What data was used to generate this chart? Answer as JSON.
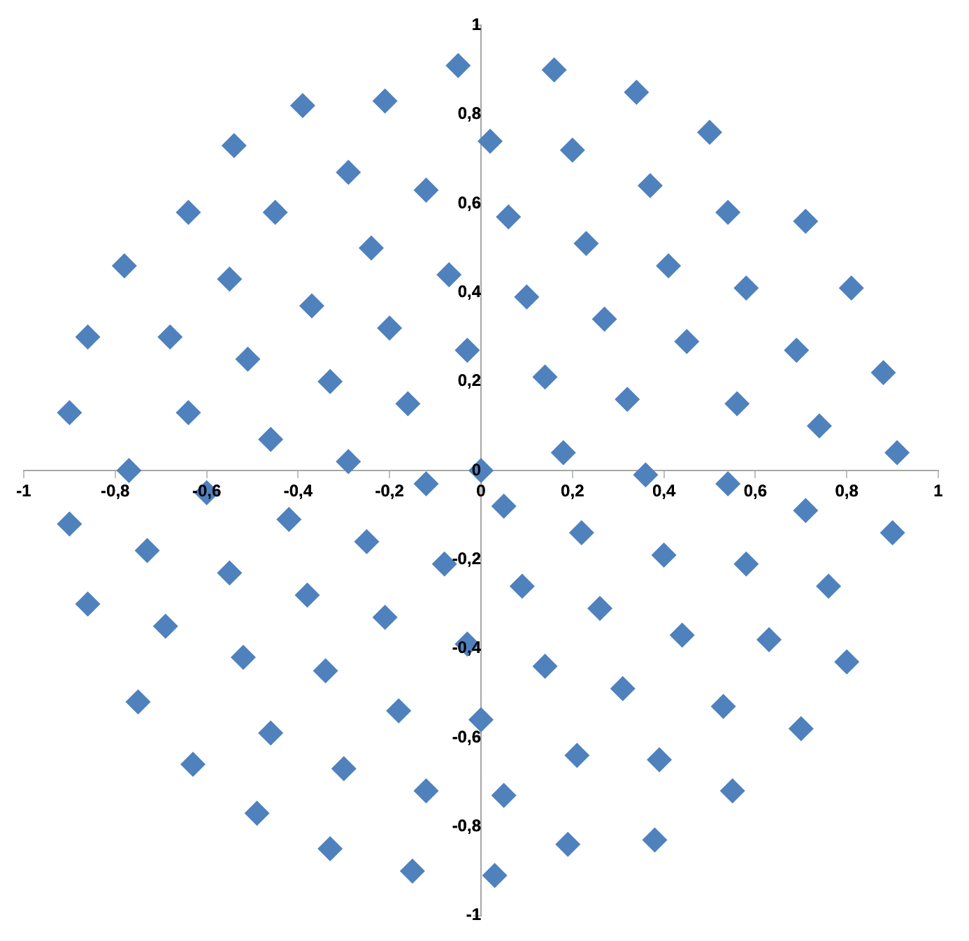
{
  "chart_data": {
    "type": "scatter",
    "marker": "diamond",
    "grid": false,
    "legend": false,
    "xlim": [
      -1,
      1
    ],
    "ylim": [
      -1,
      1
    ],
    "xticks": [
      -1,
      {
        "value": -0.8,
        "label": "-0,8"
      },
      {
        "value": -0.6,
        "label": "-0,6"
      },
      {
        "value": -0.4,
        "label": "-0,4"
      },
      {
        "value": -0.2,
        "label": "-0,2"
      },
      0,
      {
        "value": 0.2,
        "label": "0,2"
      },
      {
        "value": 0.4,
        "label": "0,4"
      },
      {
        "value": 0.6,
        "label": "0,6"
      },
      {
        "value": 0.8,
        "label": "0,8"
      },
      1
    ],
    "yticks": [
      -1,
      {
        "value": -0.8,
        "label": "-0,8"
      },
      {
        "value": -0.6,
        "label": "-0,6"
      },
      {
        "value": -0.4,
        "label": "-0,4"
      },
      {
        "value": -0.2,
        "label": "-0,2"
      },
      0,
      {
        "value": 0.2,
        "label": "0,2"
      },
      {
        "value": 0.4,
        "label": "0,4"
      },
      {
        "value": 0.6,
        "label": "0,6"
      },
      {
        "value": 0.8,
        "label": "0,8"
      },
      1
    ],
    "series": [
      {
        "color": "#4f81bd",
        "x": [
          -0.05,
          -0.39,
          -0.21,
          -0.54,
          -0.29,
          -0.12,
          -0.64,
          -0.45,
          -0.78,
          -0.24,
          -0.07,
          -0.55,
          -0.37,
          -0.86,
          -0.68,
          -0.2,
          -0.51,
          -0.03,
          -0.33,
          -0.9,
          -0.64,
          -0.16,
          -0.46,
          -0.29,
          -0.77,
          0,
          0.16,
          0.34,
          0.02,
          0.2,
          0.5,
          0.37,
          0.06,
          0.54,
          0.71,
          0.23,
          0.41,
          0.58,
          0.81,
          0.1,
          0.27,
          0.45,
          0.69,
          0.14,
          0.88,
          0.32,
          0.56,
          0.74,
          0.18,
          0.91,
          0.36,
          0.54,
          -0.6,
          -0.9,
          -0.42,
          -0.12,
          -0.73,
          -0.25,
          -0.55,
          -0.08,
          -0.86,
          -0.38,
          -0.69,
          -0.21,
          -0.03,
          -0.52,
          -0.34,
          -0.75,
          -0.18,
          0,
          -0.46,
          -0.63,
          -0.3,
          -0.12,
          -0.49,
          -0.33,
          -0.15,
          0.05,
          0.22,
          0.71,
          0.9,
          0.4,
          0.58,
          0.09,
          0.76,
          0.26,
          0.44,
          0.63,
          0.14,
          0.8,
          0.31,
          0.53,
          0.7,
          0.21,
          0.39,
          0.55,
          0.05,
          0.19,
          0.38,
          0.03
        ],
        "values": [
          0.91,
          0.82,
          0.83,
          0.73,
          0.67,
          0.63,
          0.58,
          0.58,
          0.46,
          0.5,
          0.44,
          0.43,
          0.37,
          0.3,
          0.3,
          0.32,
          0.25,
          0.27,
          0.2,
          0.13,
          0.13,
          0.15,
          0.07,
          0.02,
          0,
          0,
          0.9,
          0.85,
          0.74,
          0.72,
          0.76,
          0.64,
          0.57,
          0.58,
          0.56,
          0.51,
          0.46,
          0.41,
          0.41,
          0.39,
          0.34,
          0.29,
          0.27,
          0.21,
          0.22,
          0.16,
          0.15,
          0.1,
          0.04,
          0.04,
          -0.01,
          -0.03,
          -0.05,
          -0.12,
          -0.11,
          -0.03,
          -0.18,
          -0.16,
          -0.23,
          -0.21,
          -0.3,
          -0.28,
          -0.35,
          -0.33,
          -0.39,
          -0.42,
          -0.45,
          -0.52,
          -0.54,
          -0.56,
          -0.59,
          -0.66,
          -0.67,
          -0.72,
          -0.77,
          -0.85,
          -0.9,
          -0.08,
          -0.14,
          -0.09,
          -0.14,
          -0.19,
          -0.21,
          -0.26,
          -0.26,
          -0.31,
          -0.37,
          -0.38,
          -0.44,
          -0.43,
          -0.49,
          -0.53,
          -0.58,
          -0.64,
          -0.65,
          -0.72,
          -0.73,
          -0.84,
          -0.83,
          -0.91
        ]
      }
    ]
  }
}
